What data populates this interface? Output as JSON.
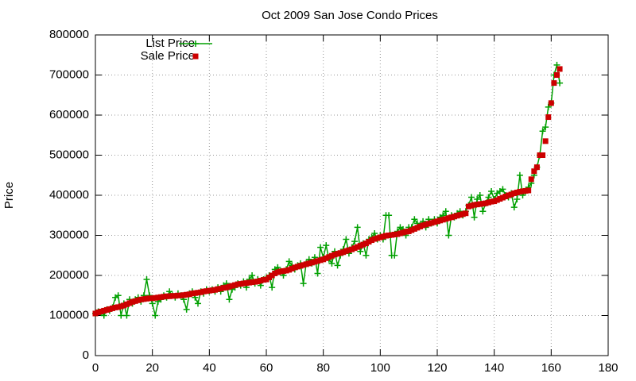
{
  "chart_data": {
    "type": "line",
    "title": "Oct 2009 San Jose Condo Prices",
    "y_label": "Price",
    "xlim": [
      0,
      180
    ],
    "xticks": [
      0,
      20,
      40,
      60,
      80,
      100,
      120,
      140,
      160,
      180
    ],
    "ylim": [
      0,
      800000
    ],
    "yticks": [
      0,
      100000,
      200000,
      300000,
      400000,
      500000,
      600000,
      700000,
      800000
    ],
    "grid": true,
    "legend": "top-left",
    "x": [
      0,
      1,
      2,
      3,
      4,
      5,
      6,
      7,
      8,
      9,
      10,
      11,
      12,
      13,
      14,
      15,
      16,
      17,
      18,
      19,
      20,
      21,
      22,
      23,
      24,
      25,
      26,
      27,
      28,
      29,
      30,
      31,
      32,
      33,
      34,
      35,
      36,
      37,
      38,
      39,
      40,
      41,
      42,
      43,
      44,
      45,
      46,
      47,
      48,
      49,
      50,
      51,
      52,
      53,
      54,
      55,
      56,
      57,
      58,
      59,
      60,
      61,
      62,
      63,
      64,
      65,
      66,
      67,
      68,
      69,
      70,
      71,
      72,
      73,
      74,
      75,
      76,
      77,
      78,
      79,
      80,
      81,
      82,
      83,
      84,
      85,
      86,
      87,
      88,
      89,
      90,
      91,
      92,
      93,
      94,
      95,
      96,
      97,
      98,
      99,
      100,
      101,
      102,
      103,
      104,
      105,
      106,
      107,
      108,
      109,
      110,
      111,
      112,
      113,
      114,
      115,
      116,
      117,
      118,
      119,
      120,
      121,
      122,
      123,
      124,
      125,
      126,
      127,
      128,
      129,
      130,
      131,
      132,
      133,
      134,
      135,
      136,
      137,
      138,
      139,
      140,
      141,
      142,
      143,
      144,
      145,
      146,
      147,
      148,
      149,
      150,
      151,
      152,
      153,
      154,
      155,
      156,
      157,
      158,
      159,
      160,
      161,
      162,
      163
    ],
    "series": [
      {
        "name": "List Price",
        "color": "#00a000",
        "style": "linespoints",
        "values": [
          105000,
          110000,
          108000,
          100000,
          115000,
          112000,
          120000,
          145000,
          150000,
          100000,
          130000,
          100000,
          140000,
          130000,
          140000,
          145000,
          135000,
          150000,
          190000,
          150000,
          130000,
          100000,
          135000,
          140000,
          150000,
          145000,
          160000,
          150000,
          145000,
          155000,
          150000,
          140000,
          115000,
          155000,
          160000,
          145000,
          130000,
          160000,
          155000,
          165000,
          160000,
          165000,
          160000,
          170000,
          160000,
          175000,
          180000,
          140000,
          165000,
          170000,
          180000,
          175000,
          185000,
          170000,
          190000,
          200000,
          180000,
          190000,
          175000,
          190000,
          195000,
          200000,
          170000,
          215000,
          220000,
          210000,
          200000,
          215000,
          235000,
          225000,
          215000,
          225000,
          230000,
          180000,
          230000,
          240000,
          230000,
          245000,
          205000,
          270000,
          245000,
          275000,
          240000,
          230000,
          260000,
          225000,
          250000,
          265000,
          290000,
          255000,
          270000,
          285000,
          320000,
          260000,
          280000,
          250000,
          290000,
          295000,
          305000,
          290000,
          300000,
          290000,
          350000,
          350000,
          250000,
          250000,
          310000,
          320000,
          315000,
          300000,
          320000,
          320000,
          340000,
          330000,
          325000,
          335000,
          320000,
          340000,
          330000,
          340000,
          330000,
          345000,
          350000,
          360000,
          300000,
          350000,
          345000,
          355000,
          360000,
          350000,
          360000,
          375000,
          395000,
          345000,
          390000,
          400000,
          360000,
          380000,
          395000,
          410000,
          390000,
          405000,
          410000,
          415000,
          400000,
          395000,
          405000,
          370000,
          390000,
          450000,
          400000,
          410000,
          420000,
          430000,
          450000,
          470000,
          500000,
          560000,
          570000,
          620000,
          630000,
          700000,
          725000,
          680000
        ]
      },
      {
        "name": "Sale Price",
        "color": "#cc0000",
        "style": "points",
        "values": [
          105000,
          108000,
          110000,
          112000,
          114000,
          116000,
          118000,
          120000,
          121000,
          123000,
          125000,
          128000,
          131000,
          134000,
          136000,
          138000,
          140000,
          141000,
          142000,
          143000,
          143000,
          144000,
          145000,
          146000,
          147000,
          148000,
          148000,
          149000,
          149000,
          150000,
          150000,
          151000,
          152000,
          153000,
          155000,
          156000,
          157000,
          158000,
          160000,
          161000,
          162000,
          163000,
          164000,
          166000,
          167000,
          169000,
          170000,
          172000,
          174000,
          176000,
          178000,
          179000,
          180000,
          181000,
          182000,
          183000,
          184000,
          185000,
          187000,
          189000,
          190000,
          195000,
          200000,
          205000,
          208000,
          210000,
          211000,
          212000,
          214000,
          217000,
          220000,
          222000,
          224000,
          226000,
          228000,
          230000,
          232000,
          234000,
          236000,
          238000,
          240000,
          243000,
          246000,
          249000,
          252000,
          254000,
          256000,
          258000,
          261000,
          263000,
          265000,
          268000,
          271000,
          274000,
          277000,
          280000,
          284000,
          288000,
          291000,
          293000,
          295000,
          297000,
          299000,
          300000,
          301000,
          302000,
          303000,
          305000,
          307000,
          309000,
          310000,
          313000,
          316000,
          319000,
          322000,
          325000,
          327000,
          329000,
          331000,
          333000,
          335000,
          337000,
          339000,
          341000,
          343000,
          345000,
          347000,
          349000,
          351000,
          353000,
          355000,
          372000,
          374000,
          376000,
          377000,
          378000,
          379000,
          380000,
          382000,
          384000,
          385000,
          388000,
          391000,
          394000,
          397000,
          400000,
          402000,
          405000,
          407000,
          409000,
          410000,
          411000,
          412000,
          440000,
          460000,
          470000,
          500000,
          500000,
          535000,
          595000,
          630000,
          680000,
          700000,
          715000
        ]
      }
    ]
  }
}
